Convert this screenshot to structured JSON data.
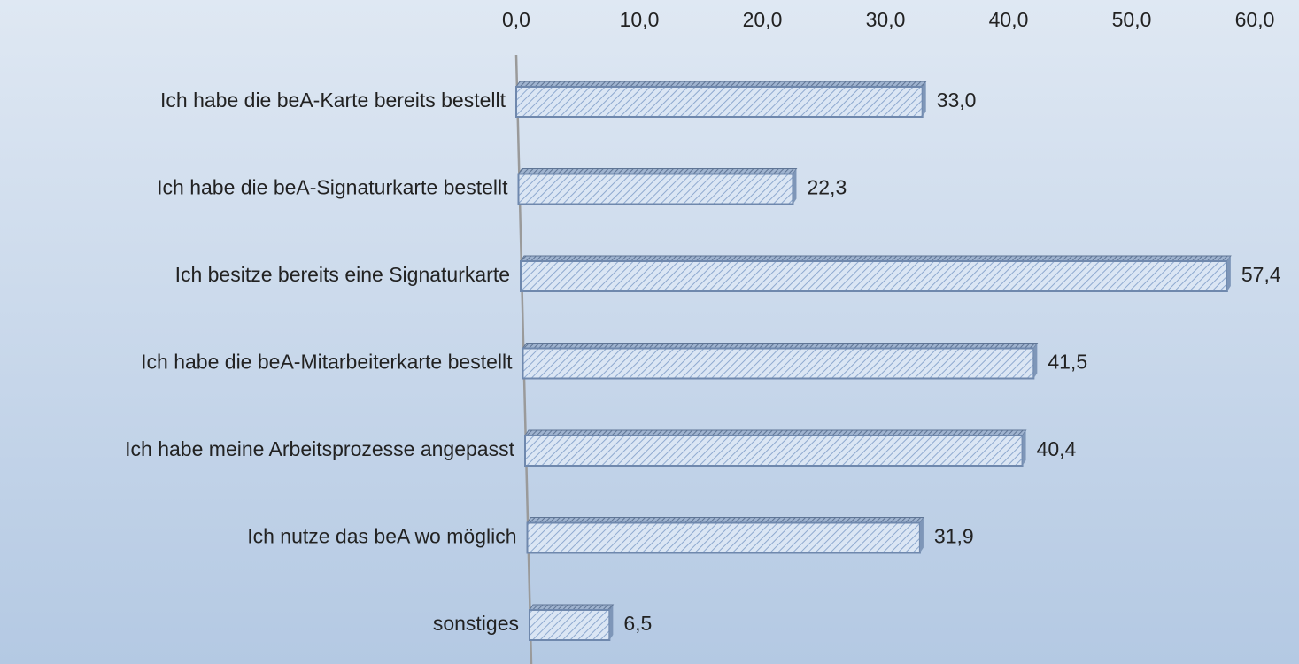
{
  "chart_data": {
    "type": "bar",
    "orientation": "horizontal",
    "categories": [
      "Ich habe die beA-Karte bereits bestellt",
      "Ich habe die beA-Signaturkarte bestellt",
      "Ich besitze bereits eine Signaturkarte",
      "Ich habe die beA-Mitarbeiterkarte bestellt",
      "Ich habe meine Arbeitsprozesse angepasst",
      "Ich nutze das beA wo möglich",
      "sonstiges"
    ],
    "values": [
      33.0,
      22.3,
      57.4,
      41.5,
      40.4,
      31.9,
      6.5
    ],
    "value_labels": [
      "33,0",
      "22,3",
      "57,4",
      "41,5",
      "40,4",
      "31,9",
      "6,5"
    ],
    "color": "#c5d9f1",
    "xlim": [
      0,
      60
    ],
    "xticks": [
      {
        "value": 0,
        "label": "0,0"
      },
      {
        "value": 10,
        "label": "10,0"
      },
      {
        "value": 20,
        "label": "20,0"
      },
      {
        "value": 30,
        "label": "30,0"
      },
      {
        "value": 40,
        "label": "40,0"
      },
      {
        "value": 50,
        "label": "50,0"
      },
      {
        "value": 60,
        "label": "60,0"
      }
    ]
  }
}
